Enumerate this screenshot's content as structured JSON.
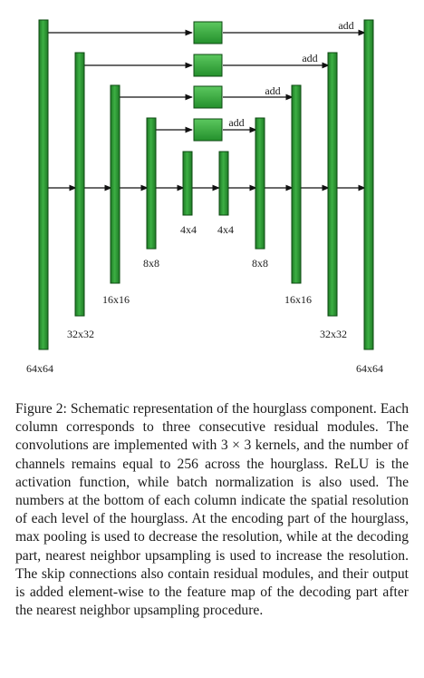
{
  "diagram": {
    "resolution_labels": {
      "col1": "64x64",
      "col2": "32x32",
      "col3": "16x16",
      "col4": "8x8",
      "col5": "4x4",
      "col6": "4x4",
      "col7": "8x8",
      "col8": "16x16",
      "col9": "32x32",
      "col10": "64x64"
    },
    "skip_labels": {
      "skip1": "add",
      "skip2": "add",
      "skip3": "add",
      "skip4": "add"
    },
    "colors": {
      "column_fill": "#2e9e36",
      "column_stroke": "#0d4a12",
      "box_fill": "#3cb043",
      "arrow": "#111111"
    }
  },
  "caption": {
    "text": "Figure 2: Schematic representation of the hourglass component. Each column corresponds to three consecutive residual modules. The convolutions are implemented with 3 × 3 kernels, and the number of channels remains equal to 256 across the hourglass. ReLU is the activation function, while batch normalization is also used. The numbers at the bottom of each column indicate the spatial resolution of each level of the hourglass. At the encoding part of the hourglass, max pooling is used to decrease the resolution, while at the decoding part, nearest neighbor upsampling is used to increase the resolution. The skip connections also contain residual modules, and their output is added element-wise to the feature map of the decoding part after the nearest neighbor upsampling procedure."
  }
}
